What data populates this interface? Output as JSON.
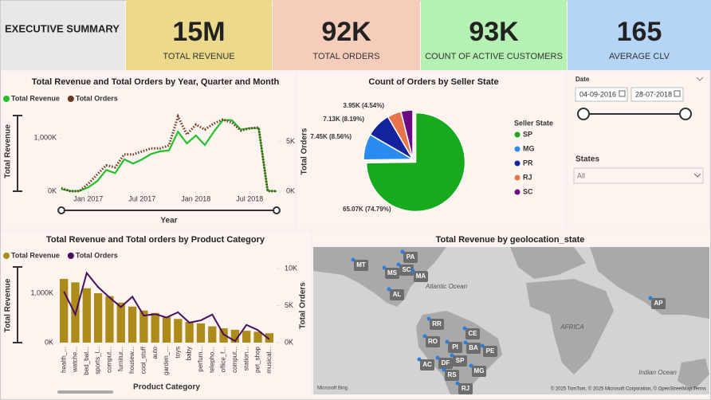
{
  "header": {
    "title": "EXECUTIVE SUMMARY"
  },
  "kpis": [
    {
      "value": "15M",
      "label": "TOTAL REVENUE"
    },
    {
      "value": "92K",
      "label": "TOTAL ORDERS"
    },
    {
      "value": "93K",
      "label": "COUNT OF ACTIVE CUSTOMERS"
    },
    {
      "value": "165",
      "label": "AVERAGE CLV"
    }
  ],
  "filters": {
    "date_label": "Date",
    "start": "04-09-2016",
    "end": "28-07-2018",
    "states_label": "States",
    "states_value": "All"
  },
  "chart_data": [
    {
      "type": "line",
      "title": "Total Revenue and Total Orders by Year, Quarter and Month",
      "x": [
        "2016-10",
        "2016-11",
        "2016-12",
        "2017-01",
        "2017-02",
        "2017-03",
        "2017-04",
        "2017-05",
        "2017-06",
        "2017-07",
        "2017-08",
        "2017-09",
        "2017-10",
        "2017-11",
        "2017-12",
        "2018-01",
        "2018-02",
        "2018-03",
        "2018-04",
        "2018-05",
        "2018-06",
        "2018-07",
        "2018-08",
        "2018-09",
        "2018-10"
      ],
      "x_label": "Year",
      "y_label": "Total Revenue",
      "y2_label": "Total Orders",
      "xticks": [
        {
          "value": "2017-01",
          "label": "Jan 2017"
        },
        {
          "value": "2017-07",
          "label": "Jul 2017"
        },
        {
          "value": "2018-01",
          "label": "Jan 2018"
        },
        {
          "value": "2018-07",
          "label": "Jul 2018"
        }
      ],
      "ylim": [
        0,
        1500000
      ],
      "yticks": [
        {
          "value": 0,
          "label": "0K"
        },
        {
          "value": 1000000,
          "label": "1,000K"
        }
      ],
      "y2lim": [
        0,
        8000
      ],
      "y2ticks": [
        {
          "value": 0,
          "label": "0K"
        },
        {
          "value": 5000,
          "label": "5K"
        }
      ],
      "series": [
        {
          "name": "Total Revenue",
          "color": "#22c12a",
          "values": [
            40000,
            5000,
            5000,
            75000,
            190000,
            400000,
            340000,
            600000,
            520000,
            600000,
            700000,
            750000,
            770000,
            1120000,
            900000,
            1050000,
            870000,
            1120000,
            1340000,
            1340000,
            1160000,
            1190000,
            1190000,
            10000,
            0
          ]
        },
        {
          "name": "Total Orders",
          "color": "#6b3a22",
          "axis": "y2",
          "dashed": true,
          "values": [
            320,
            3,
            10,
            750,
            1700,
            2600,
            2400,
            3700,
            3700,
            4000,
            4300,
            4300,
            4600,
            7500,
            5700,
            6700,
            6200,
            6800,
            7200,
            6900,
            6100,
            6300,
            6400,
            16,
            4
          ]
        }
      ]
    },
    {
      "type": "pie",
      "title": "Count of Orders by Seller State",
      "legend_title": "Seller State",
      "categories": [
        "SP",
        "MG",
        "PR",
        "RJ",
        "SC"
      ],
      "colors": [
        "#17aa1c",
        "#2a8cee",
        "#13239c",
        "#e8744b",
        "#6b0c85"
      ],
      "values": [
        65070,
        7450,
        7130,
        3950,
        3400
      ],
      "value_labels": [
        "65.07K (74.79%)",
        "7.45K (8.56%)",
        "7.13K (8.19%)",
        "3.95K (4.54%)",
        null
      ]
    },
    {
      "type": "combo",
      "title": "Total Revenue and Total orders by Product Category",
      "categories": [
        "health_...",
        "watche...",
        "bed_bat...",
        "sports_l...",
        "comput...",
        "furnitur...",
        "housew...",
        "cool_stuff",
        "auto",
        "garden_...",
        "toys",
        "baby",
        "perfum...",
        "telepho...",
        "office_f...",
        "comput...",
        "station...",
        "pet_shop",
        "musical..."
      ],
      "x_label": "Product Category",
      "y_label": "Total Revenue",
      "y2_label": "Total Orders",
      "ylim": [
        0,
        1500000
      ],
      "yticks": [
        {
          "value": 0,
          "label": "0K"
        },
        {
          "value": 1000000,
          "label": "1,000K"
        }
      ],
      "y2lim": [
        0,
        10000
      ],
      "y2ticks": [
        {
          "value": 0,
          "label": "0K"
        },
        {
          "value": 5000,
          "label": "5K"
        },
        {
          "value": 10000,
          "label": "10K"
        }
      ],
      "series": [
        {
          "name": "Total Revenue",
          "color": "#ad8b1b",
          "mark": "bar",
          "values": [
            1290000,
            1220000,
            1100000,
            1000000,
            940000,
            810000,
            730000,
            650000,
            600000,
            520000,
            480000,
            420000,
            390000,
            330000,
            290000,
            260000,
            240000,
            220000,
            190000
          ]
        },
        {
          "name": "Total Orders",
          "color": "#4a0f5c",
          "mark": "line",
          "axis": "y2",
          "values": [
            6900,
            3800,
            9400,
            7500,
            6100,
            4800,
            6200,
            3650,
            3850,
            3400,
            4100,
            2700,
            3000,
            3800,
            1100,
            200,
            2400,
            1700,
            450
          ]
        }
      ]
    }
  ],
  "map": {
    "title": "Total Revenue by geolocation_state",
    "labels": [
      "MT",
      "PA",
      "SC",
      "MS",
      "MA",
      "AL",
      "AP",
      "RR",
      "CE",
      "RO",
      "PI",
      "BA",
      "PE",
      "AC",
      "DF",
      "SP",
      "MG",
      "RS",
      "RJ"
    ],
    "places": [
      "Atlantic Ocean",
      "AFRICA",
      "Indian Ocean"
    ],
    "logo": "Microsoft Bing",
    "attribution": "© 2025 TomTom, © 2025 Microsoft Corporation, © OpenStreetMap Terms"
  }
}
